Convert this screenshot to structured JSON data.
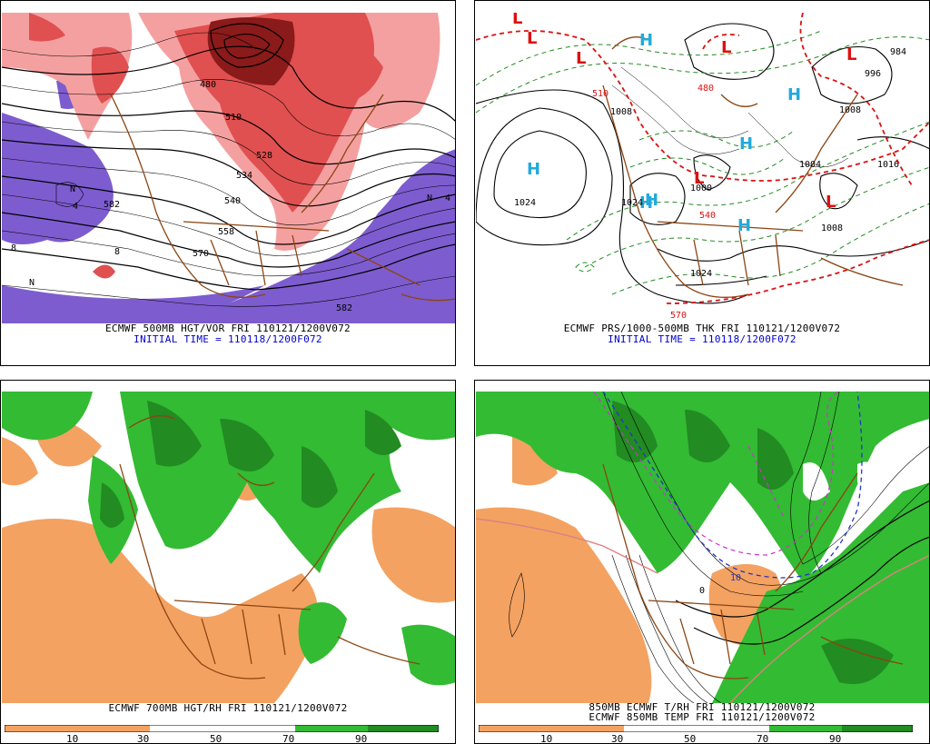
{
  "colors": {
    "vort_light": "#f5a0a0",
    "vort_mid": "#e05050",
    "vort_dark": "#8b1a1a",
    "vort_neg": "#7d5ccf",
    "rh_dry": "#f4a261",
    "rh_moist": "#33bb33",
    "rh_wet": "#228b22",
    "borders": "#8b4513",
    "hpres": "#22aadd",
    "lpres": "#dd1111",
    "thk": "#228b22"
  },
  "panels": [
    {
      "caption1": "ECMWF 500MB HGT/VOR FRI 110121/1200V072",
      "caption2": "INITIAL TIME = 110118/1200F072",
      "contour_labels": [
        "480",
        "510",
        "534",
        "540",
        "558",
        "570",
        "582",
        "582",
        "528",
        "8",
        "8",
        "4",
        "N",
        "N",
        "N",
        "4"
      ]
    },
    {
      "caption1": "ECMWF PRS/1000-500MB THK FRI 110121/1200V072",
      "caption2": "INITIAL TIME = 110118/1200F072",
      "highs": [
        "H",
        "H",
        "H",
        "H",
        "H",
        "H",
        "H"
      ],
      "lows": [
        "L",
        "L",
        "L",
        "L",
        "L",
        "L",
        "L"
      ],
      "contour_labels": [
        "1024",
        "1024",
        "1024",
        "1016",
        "1008",
        "1008",
        "1008",
        "1004",
        "1000",
        "996",
        "984",
        "480",
        "510",
        "540",
        "570"
      ]
    },
    {
      "caption1": "ECMWF 700MB HGT/RH FRI 110121/1200V072",
      "colorbar_labels": [
        "10",
        "30",
        "50",
        "70",
        "90"
      ]
    },
    {
      "caption1": "850MB ECMWF T/RH FRI 110121/1200V072",
      "caption2": "ECMWF 850MB TEMP FRI 110121/1200V072",
      "contour_labels": [
        "0",
        "10"
      ],
      "colorbar_labels": [
        "10",
        "30",
        "50",
        "70",
        "90"
      ]
    }
  ]
}
